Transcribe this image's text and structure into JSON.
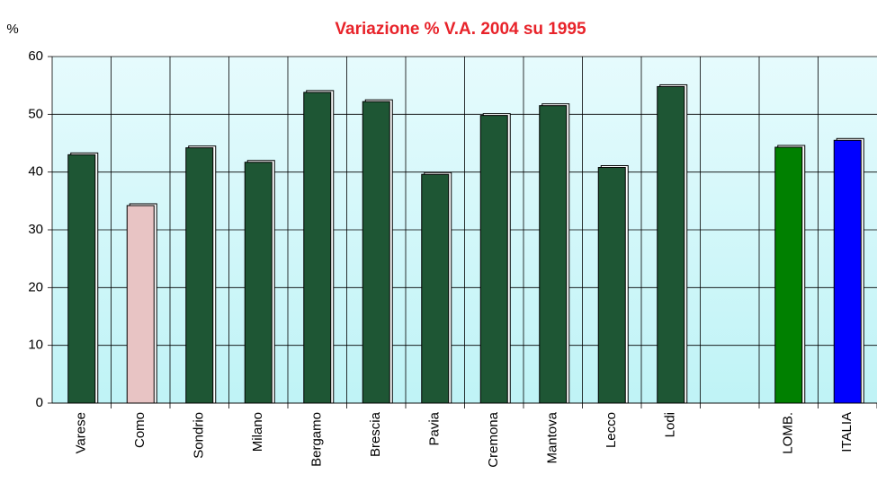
{
  "chart_data": {
    "type": "bar",
    "title": "Variazione % V.A. 2004 su 1995",
    "y_label": "%",
    "categories": [
      "Varese",
      "Como",
      "Sondrio",
      "Milano",
      "Bergamo",
      "Brescia",
      "Pavia",
      "Cremona",
      "Mantova",
      "Lecco",
      "Lodi",
      null,
      "LOMB.",
      "ITALIA"
    ],
    "values": [
      43,
      34.2,
      44.2,
      41.7,
      53.8,
      52.2,
      39.6,
      49.8,
      51.5,
      40.8,
      54.8,
      null,
      44.3,
      45.5
    ],
    "colors": [
      "#1e5634",
      "#e8c4c4",
      "#1e5634",
      "#1e5634",
      "#1e5634",
      "#1e5634",
      "#1e5634",
      "#1e5634",
      "#1e5634",
      "#1e5634",
      "#1e5634",
      null,
      "#008000",
      "#0000ff"
    ],
    "ylim": [
      0,
      60
    ],
    "yticks": [
      0,
      10,
      20,
      30,
      40,
      50,
      60
    ],
    "grid": true
  }
}
